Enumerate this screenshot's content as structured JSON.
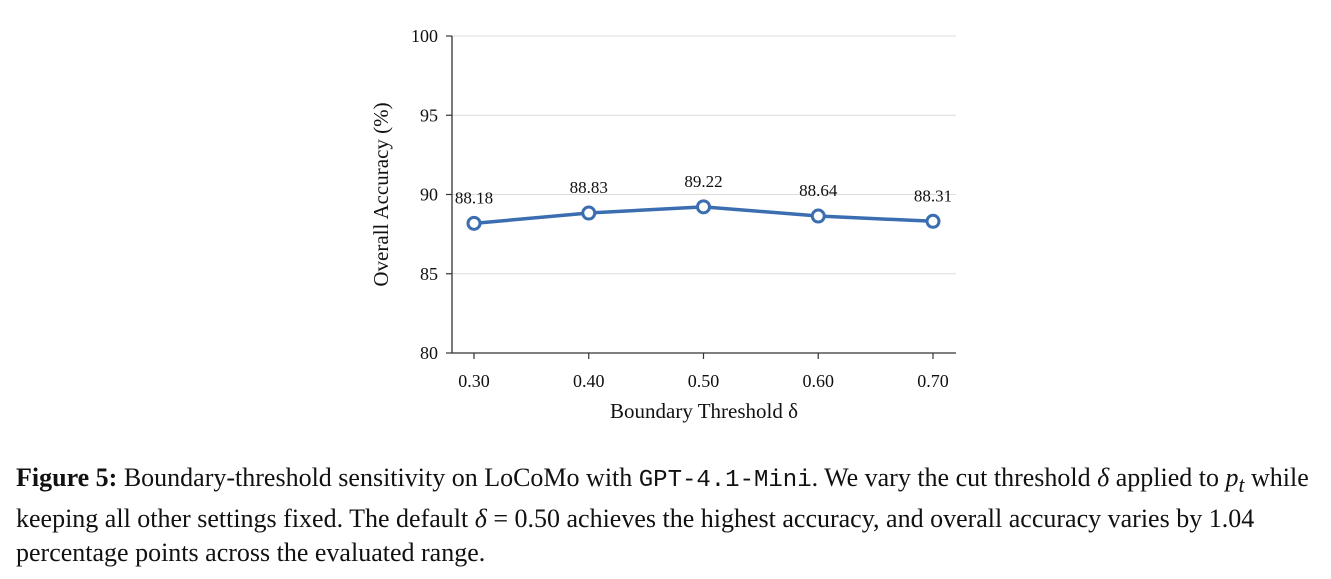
{
  "chart_data": {
    "type": "line",
    "title": "",
    "xlabel": "Boundary Threshold δ",
    "ylabel": "Overall Accuracy (%)",
    "categories": [
      "0.30",
      "0.40",
      "0.50",
      "0.60",
      "0.70"
    ],
    "x": [
      0.3,
      0.4,
      0.5,
      0.6,
      0.7
    ],
    "series": [
      {
        "values": [
          88.18,
          88.83,
          89.22,
          88.64,
          88.31
        ],
        "data_labels": [
          "88.18",
          "88.83",
          "89.22",
          "88.64",
          "88.31"
        ],
        "color": "#3b6eb0",
        "marker": "open-circle"
      }
    ],
    "ylim": [
      80,
      100
    ],
    "yticks": [
      80,
      85,
      90,
      95,
      100
    ],
    "ytick_labels": [
      "80",
      "85",
      "90",
      "95",
      "100"
    ],
    "grid": "horizontal",
    "legend": "none"
  },
  "caption": {
    "label": "Figure 5:",
    "text_1": " Boundary-threshold sensitivity on LoCoMo with ",
    "model": "GPT-4.1-Mini",
    "text_2": ". We vary the cut threshold ",
    "delta_1": "δ",
    "text_3": " applied to ",
    "p": "p",
    "sub_t": "t",
    "text_4": " while keeping all other settings fixed. The default ",
    "delta_2": "δ",
    "text_5": " = 0.50 achieves the highest accuracy, and overall accuracy varies by 1.04 percentage points across the evaluated range."
  }
}
